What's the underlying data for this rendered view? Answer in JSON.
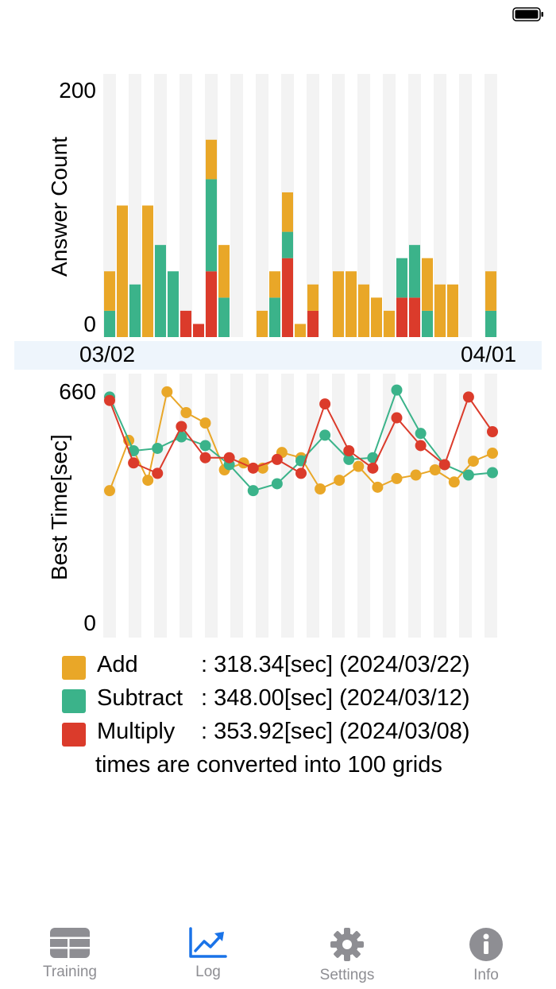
{
  "chart_data": [
    {
      "type": "bar",
      "stacked": true,
      "ylabel": "Answer Count",
      "ylim": [
        0,
        200
      ],
      "yticks": [
        "200",
        "0"
      ],
      "x_start_label": "03/02",
      "x_end_label": "04/01",
      "colors": {
        "add": "#e9a728",
        "subtract": "#3bb38a",
        "multiply": "#db3b2b"
      },
      "days": [
        {
          "add": 30,
          "subtract": 20,
          "multiply": 0
        },
        {
          "add": 100,
          "subtract": 0,
          "multiply": 0
        },
        {
          "add": 0,
          "subtract": 40,
          "multiply": 0
        },
        {
          "add": 100,
          "subtract": 0,
          "multiply": 0
        },
        {
          "add": 0,
          "subtract": 70,
          "multiply": 0
        },
        {
          "add": 0,
          "subtract": 50,
          "multiply": 0
        },
        {
          "add": 0,
          "subtract": 0,
          "multiply": 20
        },
        {
          "add": 0,
          "subtract": 0,
          "multiply": 10
        },
        {
          "add": 30,
          "subtract": 70,
          "multiply": 50
        },
        {
          "add": 40,
          "subtract": 30,
          "multiply": 0
        },
        {
          "add": 0,
          "subtract": 0,
          "multiply": 0
        },
        {
          "add": 0,
          "subtract": 0,
          "multiply": 0
        },
        {
          "add": 20,
          "subtract": 0,
          "multiply": 0
        },
        {
          "add": 20,
          "subtract": 30,
          "multiply": 0
        },
        {
          "add": 30,
          "subtract": 20,
          "multiply": 60
        },
        {
          "add": 10,
          "subtract": 0,
          "multiply": 0
        },
        {
          "add": 20,
          "subtract": 0,
          "multiply": 20
        },
        {
          "add": 0,
          "subtract": 0,
          "multiply": 0
        },
        {
          "add": 50,
          "subtract": 0,
          "multiply": 0
        },
        {
          "add": 50,
          "subtract": 0,
          "multiply": 0
        },
        {
          "add": 40,
          "subtract": 0,
          "multiply": 0
        },
        {
          "add": 30,
          "subtract": 0,
          "multiply": 0
        },
        {
          "add": 20,
          "subtract": 0,
          "multiply": 0
        },
        {
          "add": 0,
          "subtract": 30,
          "multiply": 30
        },
        {
          "add": 0,
          "subtract": 40,
          "multiply": 30
        },
        {
          "add": 40,
          "subtract": 20,
          "multiply": 0
        },
        {
          "add": 40,
          "subtract": 0,
          "multiply": 0
        },
        {
          "add": 40,
          "subtract": 0,
          "multiply": 0
        },
        {
          "add": 0,
          "subtract": 0,
          "multiply": 0
        },
        {
          "add": 0,
          "subtract": 0,
          "multiply": 0
        },
        {
          "add": 30,
          "subtract": 20,
          "multiply": 0
        }
      ]
    },
    {
      "type": "line",
      "ylabel": "Best Time[sec]",
      "ylim": [
        0,
        660
      ],
      "yticks": [
        "660",
        "0"
      ],
      "series": [
        {
          "name": "Add",
          "color": "#e9a728",
          "values": [
            380,
            525,
            410,
            665,
            605,
            575,
            440,
            460,
            445,
            490,
            475,
            385,
            410,
            450,
            390,
            415,
            425,
            440,
            405,
            465,
            488
          ]
        },
        {
          "name": "Subtract",
          "color": "#3bb38a",
          "values": [
            650,
            495,
            502,
            535,
            510,
            455,
            380,
            400,
            466,
            540,
            470,
            475,
            670,
            545,
            455,
            425,
            432
          ]
        },
        {
          "name": "Multiply",
          "color": "#db3b2b",
          "values": [
            640,
            460,
            430,
            565,
            475,
            475,
            445,
            470,
            430,
            630,
            495,
            445,
            590,
            510,
            455,
            650,
            550
          ]
        }
      ]
    }
  ],
  "legend": {
    "rows": [
      {
        "name": "Add",
        "value": ": 318.34[sec] (2024/03/22)",
        "color": "#e9a728"
      },
      {
        "name": "Subtract",
        "value": ": 348.00[sec] (2024/03/12)",
        "color": "#3bb38a"
      },
      {
        "name": "Multiply",
        "value": ": 353.92[sec] (2024/03/08)",
        "color": "#db3b2b"
      }
    ],
    "note": "times are converted into 100 grids"
  },
  "tabs": [
    {
      "label": "Training",
      "icon": "table-icon",
      "active": false
    },
    {
      "label": "Log",
      "icon": "chart-icon",
      "active": true
    },
    {
      "label": "Settings",
      "icon": "gear-icon",
      "active": false
    },
    {
      "label": "Info",
      "icon": "info-icon",
      "active": false
    }
  ],
  "colors": {
    "active_tab": "#1a73e8",
    "inactive_tab": "#8e8e93",
    "band": "#f3f3f3"
  }
}
